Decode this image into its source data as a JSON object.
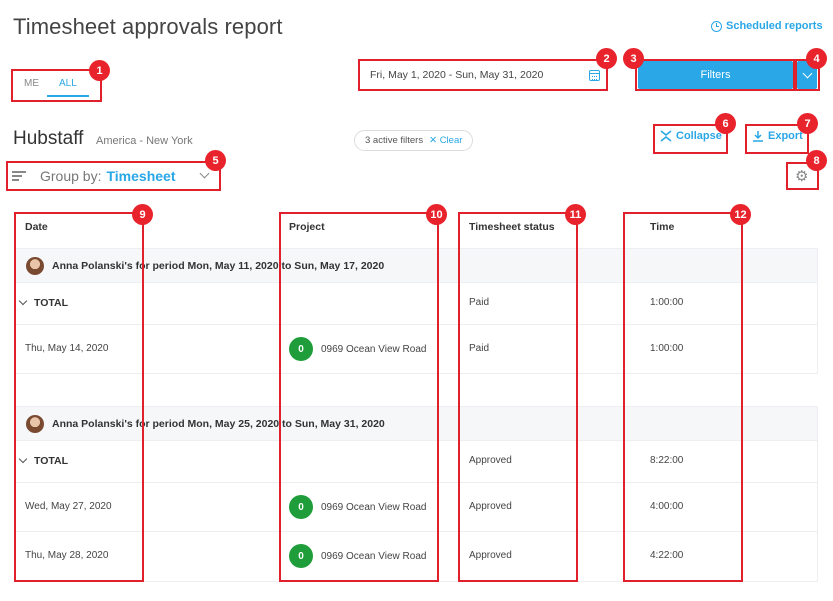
{
  "header": {
    "title": "Timesheet approvals report",
    "scheduled_reports": "Scheduled reports"
  },
  "toggle": {
    "me": "ME",
    "all": "ALL",
    "selected": "ALL"
  },
  "date_range": {
    "value": "Fri, May 1, 2020 - Sun, May 31, 2020",
    "icon": "calendar-icon"
  },
  "filters": {
    "label": "Filters",
    "accent": "#2aa7e6"
  },
  "org": {
    "name": "Hubstaff",
    "timezone": "America - New York"
  },
  "active_filters": {
    "text": "3 active filters",
    "clear": "Clear"
  },
  "actions": {
    "collapse": "Collapse",
    "export": "Export"
  },
  "group_by": {
    "label": "Group by:",
    "value": "Timesheet"
  },
  "columns": {
    "date": "Date",
    "project": "Project",
    "status": "Timesheet status",
    "time": "Time"
  },
  "groups": [
    {
      "title": "Anna Polanski's for period Mon, May 11, 2020 to Sun, May 17, 2020",
      "total": {
        "label": "TOTAL",
        "status": "Paid",
        "time": "1:00:00"
      },
      "rows": [
        {
          "date": "Thu, May 14, 2020",
          "project_badge": "0",
          "project": "0969 Ocean View Road",
          "status": "Paid",
          "time": "1:00:00"
        }
      ]
    },
    {
      "title": "Anna Polanski's for period Mon, May 25, 2020 to Sun, May 31, 2020",
      "total": {
        "label": "TOTAL",
        "status": "Approved",
        "time": "8:22:00"
      },
      "rows": [
        {
          "date": "Wed, May 27, 2020",
          "project_badge": "0",
          "project": "0969 Ocean View Road",
          "status": "Approved",
          "time": "4:00:00"
        },
        {
          "date": "Thu, May 28, 2020",
          "project_badge": "0",
          "project": "0969 Ocean View Road",
          "status": "Approved",
          "time": "4:22:00"
        }
      ]
    }
  ],
  "callouts": [
    "1",
    "2",
    "3",
    "4",
    "5",
    "6",
    "7",
    "8",
    "9",
    "10",
    "11",
    "12"
  ],
  "colors": {
    "accent": "#2aa7e6",
    "callout": "#e0202a",
    "project_badge": "#1f9d3a"
  }
}
